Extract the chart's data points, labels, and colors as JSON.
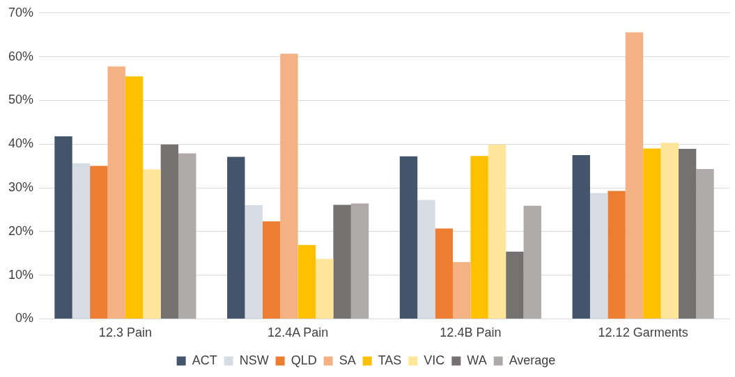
{
  "chart_data": {
    "type": "bar",
    "categories": [
      "12.3 Pain",
      "12.4A Pain",
      "12.4B Pain",
      "12.12 Garments"
    ],
    "series": [
      {
        "name": "ACT",
        "color": "#44546a",
        "values": [
          41.8,
          37.1,
          37.2,
          37.5
        ]
      },
      {
        "name": "NSW",
        "color": "#d6dce4",
        "values": [
          35.6,
          26.0,
          27.2,
          28.8
        ]
      },
      {
        "name": "QLD",
        "color": "#ed7d31",
        "values": [
          35.0,
          22.3,
          20.7,
          29.3
        ]
      },
      {
        "name": "SA",
        "color": "#f4b183",
        "values": [
          57.8,
          60.7,
          13.0,
          65.6
        ]
      },
      {
        "name": "TAS",
        "color": "#ffc000",
        "values": [
          55.5,
          16.9,
          37.3,
          39.0
        ]
      },
      {
        "name": "VIC",
        "color": "#ffe699",
        "values": [
          34.2,
          13.7,
          39.9,
          40.3
        ]
      },
      {
        "name": "WA",
        "color": "#767171",
        "values": [
          39.9,
          26.1,
          15.4,
          38.9
        ]
      },
      {
        "name": "Average",
        "color": "#aeaaaa",
        "values": [
          37.9,
          26.4,
          25.9,
          34.3
        ]
      }
    ],
    "ylim": [
      0,
      70
    ],
    "yticks": [
      {
        "value": 0,
        "label": "0%"
      },
      {
        "value": 10,
        "label": "10%"
      },
      {
        "value": 20,
        "label": "20%"
      },
      {
        "value": 30,
        "label": "30%"
      },
      {
        "value": 40,
        "label": "40%"
      },
      {
        "value": 50,
        "label": "50%"
      },
      {
        "value": 60,
        "label": "60%"
      },
      {
        "value": 70,
        "label": "70%"
      }
    ],
    "grid": "y",
    "legend": "bottom"
  }
}
